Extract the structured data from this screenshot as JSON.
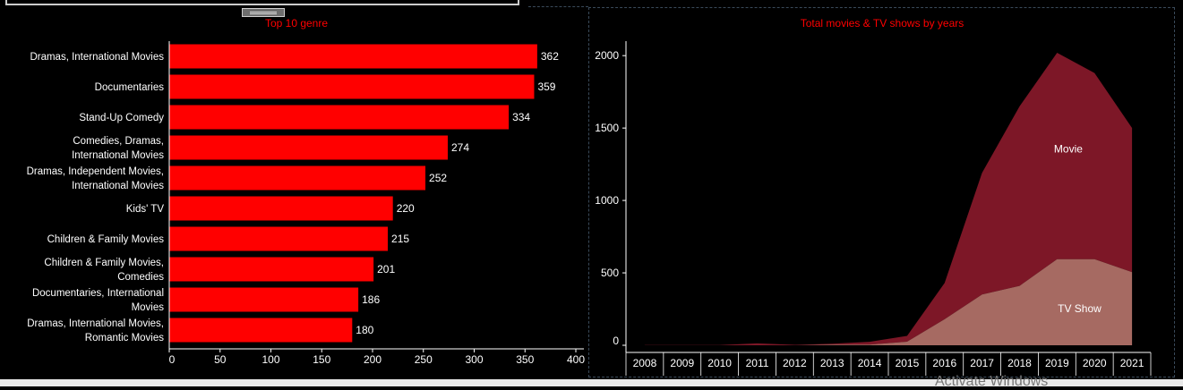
{
  "chart_data": [
    {
      "type": "bar",
      "orientation": "horizontal",
      "title": "Top 10 genre",
      "categories": [
        [
          "Dramas, International Movies"
        ],
        [
          "Documentaries"
        ],
        [
          "Stand-Up Comedy"
        ],
        [
          "Comedies, Dramas,",
          "International Movies"
        ],
        [
          "Dramas, Independent Movies,",
          "International Movies"
        ],
        [
          "Kids' TV"
        ],
        [
          "Children & Family Movies"
        ],
        [
          "Children & Family Movies,",
          "Comedies"
        ],
        [
          "Documentaries, International",
          "Movies"
        ],
        [
          "Dramas, International Movies,",
          "Romantic Movies"
        ]
      ],
      "values": [
        362,
        359,
        334,
        274,
        252,
        220,
        215,
        201,
        186,
        180
      ],
      "xticks": [
        0,
        50,
        100,
        150,
        200,
        250,
        300,
        350,
        400
      ],
      "xlim": [
        0,
        400
      ],
      "bar_color": "#ff0000",
      "grid": false
    },
    {
      "type": "area",
      "stacked": true,
      "title": "Total movies & TV shows by years",
      "x": [
        "2008",
        "2009",
        "2010",
        "2011",
        "2012",
        "2013",
        "2014",
        "2015",
        "2016",
        "2017",
        "2018",
        "2019",
        "2020",
        "2021"
      ],
      "series": [
        {
          "name": "TV Show",
          "values": [
            0,
            0,
            0,
            0,
            0,
            5,
            5,
            25,
            180,
            350,
            410,
            595,
            595,
            505
          ],
          "color": "#a66a62"
        },
        {
          "name": "Movie",
          "values": [
            1,
            2,
            1,
            13,
            3,
            6,
            19,
            40,
            250,
            840,
            1240,
            1425,
            1285,
            995
          ],
          "color": "#7d1727"
        }
      ],
      "yticks": [
        0,
        500,
        1000,
        1500,
        2000
      ],
      "ylim": [
        0,
        2100
      ],
      "grid": false
    }
  ],
  "colors": {
    "background": "#000000",
    "title": "#ff0000",
    "text": "#ffffff"
  },
  "overlay": {
    "watermark": "Activate Windows"
  }
}
